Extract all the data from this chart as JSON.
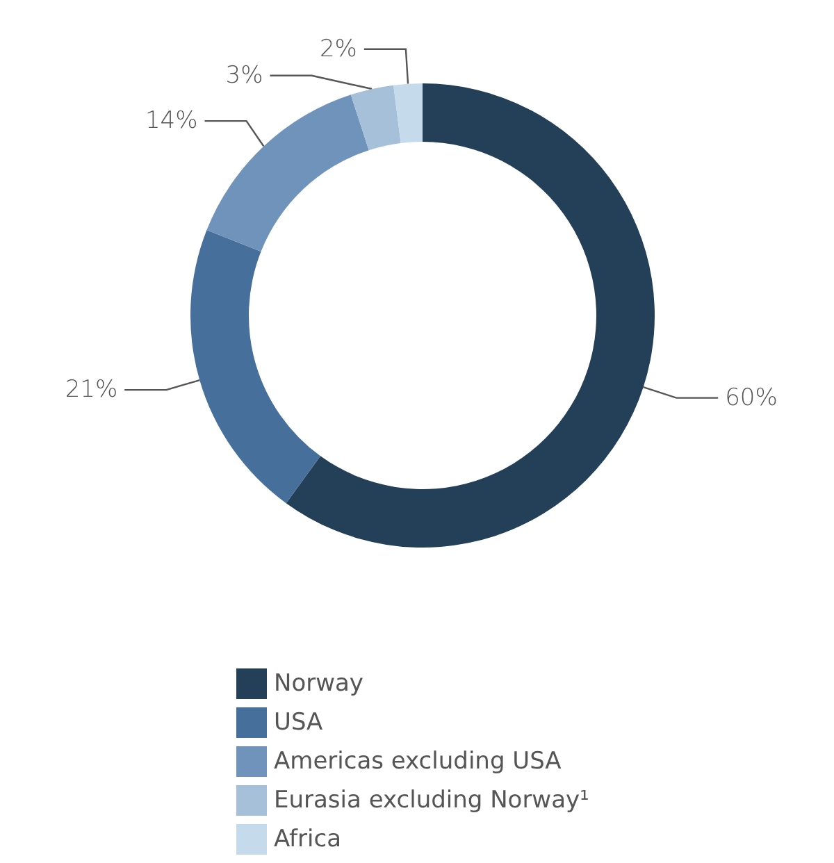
{
  "chart_data": {
    "type": "donut",
    "categories": [
      "Norway",
      "USA",
      "Americas excluding USA",
      "Eurasia excluding Norway¹",
      "Africa"
    ],
    "values": [
      60,
      21,
      14,
      3,
      2
    ],
    "colors": [
      "#243f58",
      "#476f9c",
      "#7093bb",
      "#a6c0da",
      "#c5daeb"
    ],
    "value_labels": [
      "60%",
      "21%",
      "14%",
      "3%",
      "2%"
    ],
    "legend": "bottom"
  }
}
